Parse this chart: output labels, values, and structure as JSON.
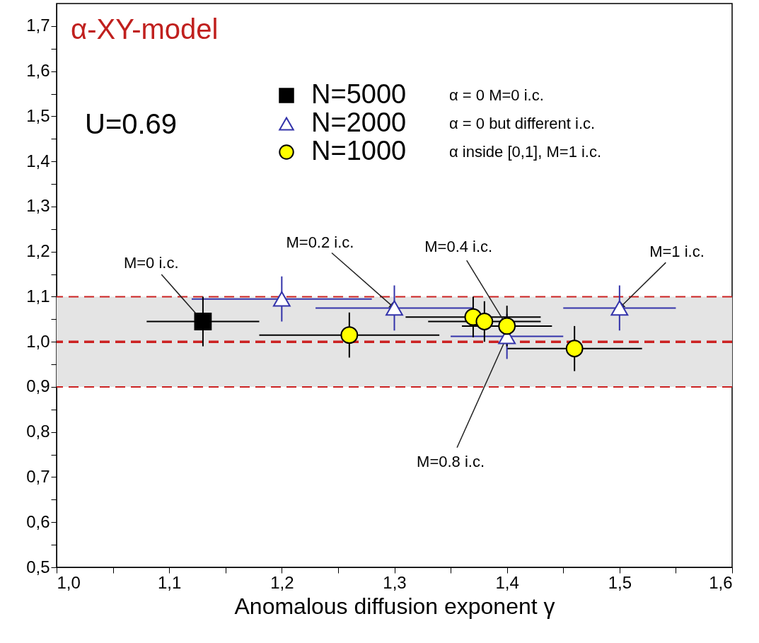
{
  "chart_data": {
    "type": "scatter",
    "title": "α-XY-model",
    "xlabel": "Anomalous diffusion exponent   γ",
    "xlim": [
      1.0,
      1.6
    ],
    "xticks": [
      {
        "value": 1.0,
        "label": "1,0"
      },
      {
        "value": 1.05,
        "label": null
      },
      {
        "value": 1.1,
        "label": "1,1"
      },
      {
        "value": 1.15,
        "label": null
      },
      {
        "value": 1.2,
        "label": "1,2"
      },
      {
        "value": 1.25,
        "label": null
      },
      {
        "value": 1.3,
        "label": "1,3"
      },
      {
        "value": 1.35,
        "label": null
      },
      {
        "value": 1.4,
        "label": "1,4"
      },
      {
        "value": 1.45,
        "label": null
      },
      {
        "value": 1.5,
        "label": "1,5"
      },
      {
        "value": 1.55,
        "label": null
      },
      {
        "value": 1.6,
        "label": "1,6"
      }
    ],
    "ylim": [
      0.5,
      1.75
    ],
    "yticks": [
      {
        "value": 0.5,
        "label": "0,5"
      },
      {
        "value": 0.55,
        "label": null
      },
      {
        "value": 0.6,
        "label": "0,6"
      },
      {
        "value": 0.65,
        "label": null
      },
      {
        "value": 0.7,
        "label": "0,7"
      },
      {
        "value": 0.75,
        "label": null
      },
      {
        "value": 0.8,
        "label": "0,8"
      },
      {
        "value": 0.85,
        "label": null
      },
      {
        "value": 0.9,
        "label": "0,9"
      },
      {
        "value": 0.95,
        "label": null
      },
      {
        "value": 1.0,
        "label": "1,0"
      },
      {
        "value": 1.05,
        "label": null
      },
      {
        "value": 1.1,
        "label": "1,1"
      },
      {
        "value": 1.15,
        "label": null
      },
      {
        "value": 1.2,
        "label": "1,2"
      },
      {
        "value": 1.25,
        "label": null
      },
      {
        "value": 1.3,
        "label": "1,3"
      },
      {
        "value": 1.35,
        "label": null
      },
      {
        "value": 1.4,
        "label": "1,4"
      },
      {
        "value": 1.45,
        "label": null
      },
      {
        "value": 1.5,
        "label": "1,5"
      },
      {
        "value": 1.55,
        "label": null
      },
      {
        "value": 1.6,
        "label": "1,6"
      },
      {
        "value": 1.65,
        "label": null
      },
      {
        "value": 1.7,
        "label": "1,7"
      }
    ],
    "grid": false,
    "legend": "top",
    "series": [
      {
        "name": "N=5000",
        "color": "#000000",
        "marker": "square",
        "x": [
          1.13
        ],
        "values": [
          1.045
        ],
        "errors": [
          0.055
        ],
        "xerrors": [
          0.05
        ]
      },
      {
        "name": "N=2000",
        "color": "#3333aa",
        "marker": "triangle",
        "x": [
          1.2,
          1.3,
          1.4,
          1.5
        ],
        "values": [
          1.095,
          1.075,
          1.012,
          1.075
        ],
        "errors": [
          0.05,
          0.05,
          0.05,
          0.05
        ],
        "xerrors": [
          0.08,
          0.07,
          0.05,
          0.05
        ]
      },
      {
        "name": "N=1000",
        "color": "#ffff00",
        "marker": "circle",
        "x": [
          1.26,
          1.37,
          1.38,
          1.4,
          1.46
        ],
        "values": [
          1.015,
          1.055,
          1.045,
          1.035,
          0.985
        ],
        "errors": [
          0.05,
          0.045,
          0.045,
          0.045,
          0.05
        ],
        "xerrors": [
          0.08,
          0.06,
          0.05,
          0.04,
          0.06
        ]
      }
    ],
    "ref_lines": [
      {
        "axis": "y",
        "value": 1.0,
        "color": "#cc2222",
        "line_style": "dashed"
      },
      {
        "axis": "y",
        "value": 1.1,
        "color": "#cc2222",
        "line_style": "dashed"
      },
      {
        "axis": "y",
        "value": 0.9,
        "color": "#cc2222",
        "line_style": "dashed"
      }
    ],
    "bands": [
      {
        "axis": "y",
        "from": 0.9,
        "to": 1.1,
        "color": "#e4e4e4"
      }
    ],
    "annotations": [
      "U=0.69",
      "α = 0   M=0  i.c.",
      "α = 0  but different i.c.",
      "α  inside [0,1],  M=1  i.c.",
      {
        "text": "M=0  i.c.",
        "x": 1.13,
        "y": 1.045
      },
      {
        "text": "M=0.2  i.c.",
        "x": 1.3,
        "y": 1.075
      },
      {
        "text": "M=0.4  i.c.",
        "x": 1.4,
        "y": 1.035
      },
      {
        "text": "M=1  i.c.",
        "x": 1.5,
        "y": 1.075
      },
      {
        "text": "M=0.8  i.c.",
        "x": 1.4,
        "y": 1.012
      }
    ]
  }
}
